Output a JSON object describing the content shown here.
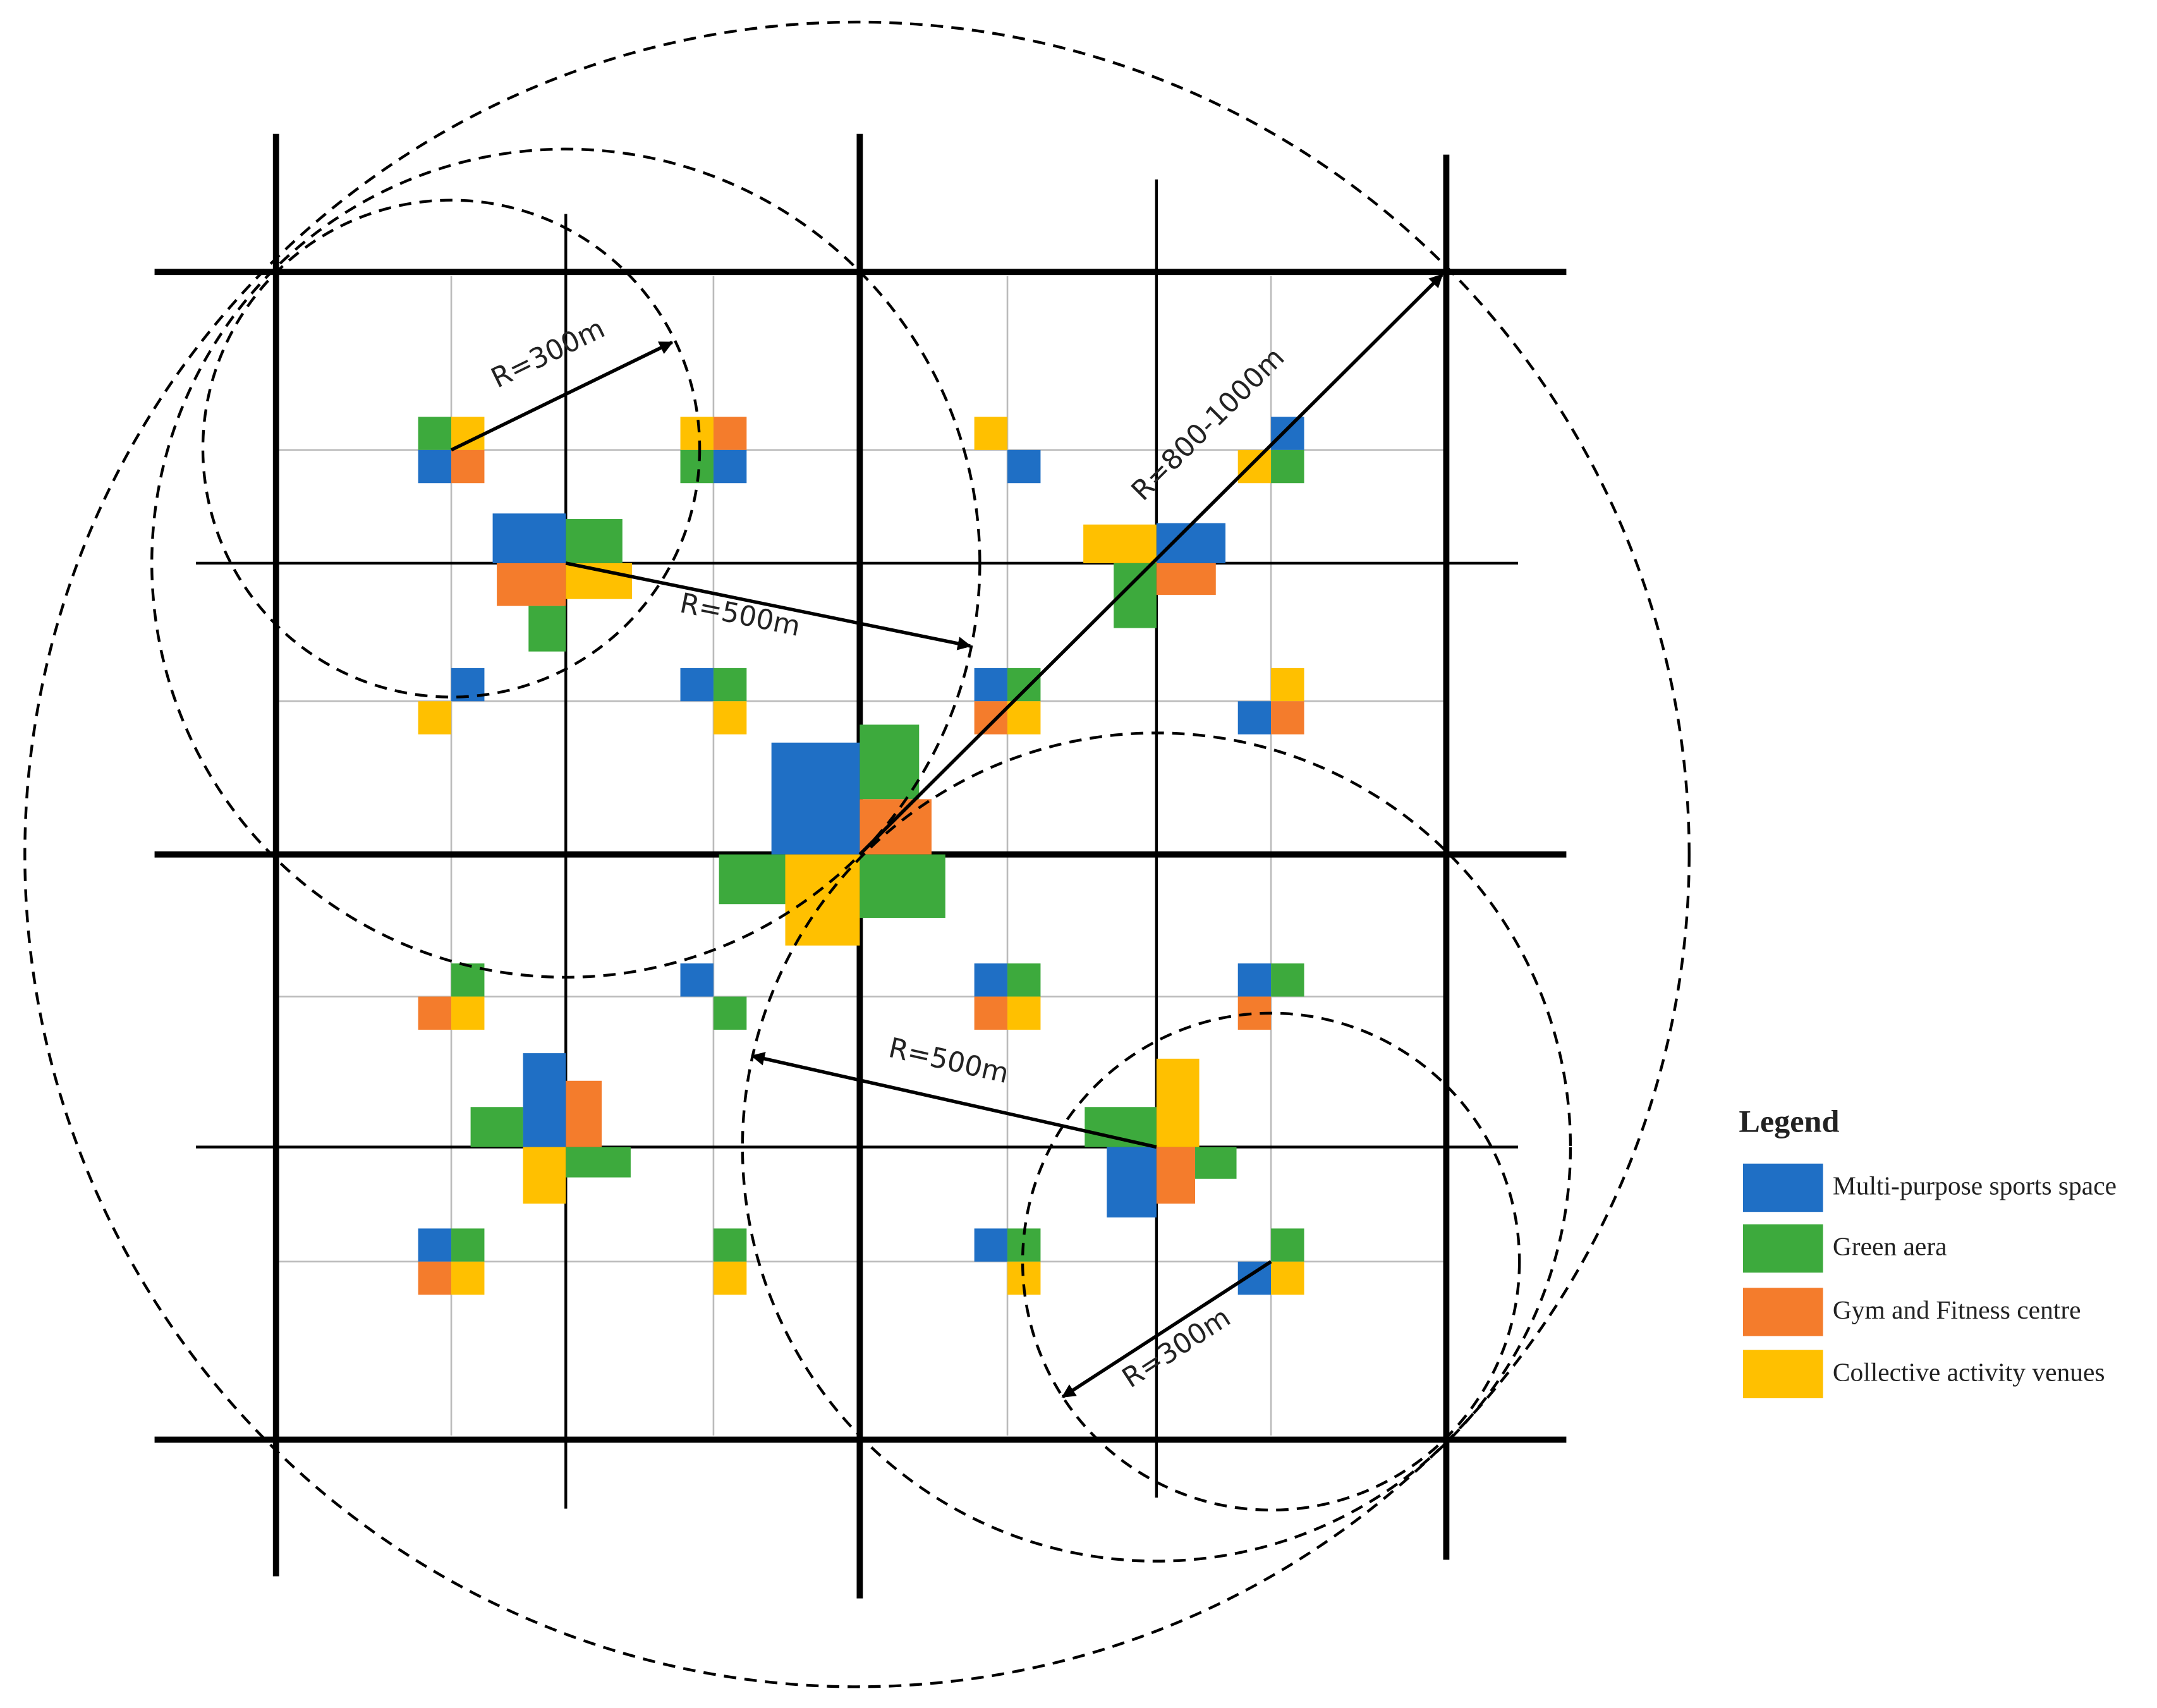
{
  "annotations": [
    {
      "label": "R=300m"
    },
    {
      "label": "R=500m"
    },
    {
      "label": "R=800-1000m"
    },
    {
      "label": "R=500m"
    },
    {
      "label": "R=300m"
    }
  ],
  "legend": {
    "title": "Legend",
    "items": [
      {
        "label": "Multi-purpose sports space",
        "color": "#1f6fc5"
      },
      {
        "label": "Green aera",
        "color": "#3daa3d"
      },
      {
        "label": "Gym and Fitness centre",
        "color": "#f47c2c"
      },
      {
        "label": "Collective activity venues",
        "color": "#ffc000"
      }
    ]
  }
}
